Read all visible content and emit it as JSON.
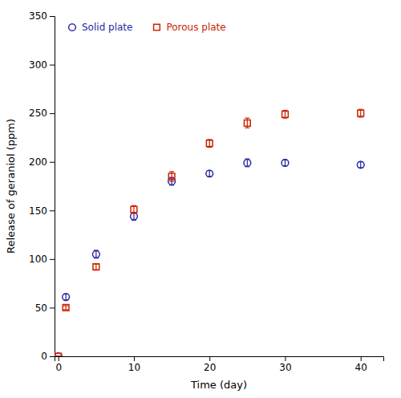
{
  "chart_data": {
    "type": "scatter",
    "xlabel": "Time (day)",
    "ylabel": "Release of geraniol (ppm)",
    "xlim": [
      -0.5,
      43
    ],
    "ylim": [
      0,
      350
    ],
    "xticks": [
      0,
      10,
      20,
      30,
      40
    ],
    "yticks": [
      0,
      50,
      100,
      150,
      200,
      250,
      300,
      350
    ],
    "grid": false,
    "legend": "upper left",
    "series": [
      {
        "name": "Solid plate",
        "color": "#2929a3",
        "marker": "circle",
        "x": [
          0,
          1,
          5,
          10,
          15,
          20,
          25,
          30,
          40
        ],
        "values": [
          0,
          61,
          105,
          144,
          180,
          188,
          199,
          199,
          197
        ],
        "errors": [
          0,
          3,
          4,
          4,
          4,
          3,
          4,
          3,
          3
        ]
      },
      {
        "name": "Porous plate",
        "color": "#cc2200",
        "marker": "square",
        "x": [
          0,
          1,
          5,
          10,
          15,
          20,
          25,
          30,
          40
        ],
        "values": [
          0,
          50,
          92,
          151,
          185,
          219,
          240,
          249,
          250
        ],
        "errors": [
          0,
          2,
          3,
          4,
          5,
          4,
          5,
          4,
          4
        ]
      }
    ]
  }
}
